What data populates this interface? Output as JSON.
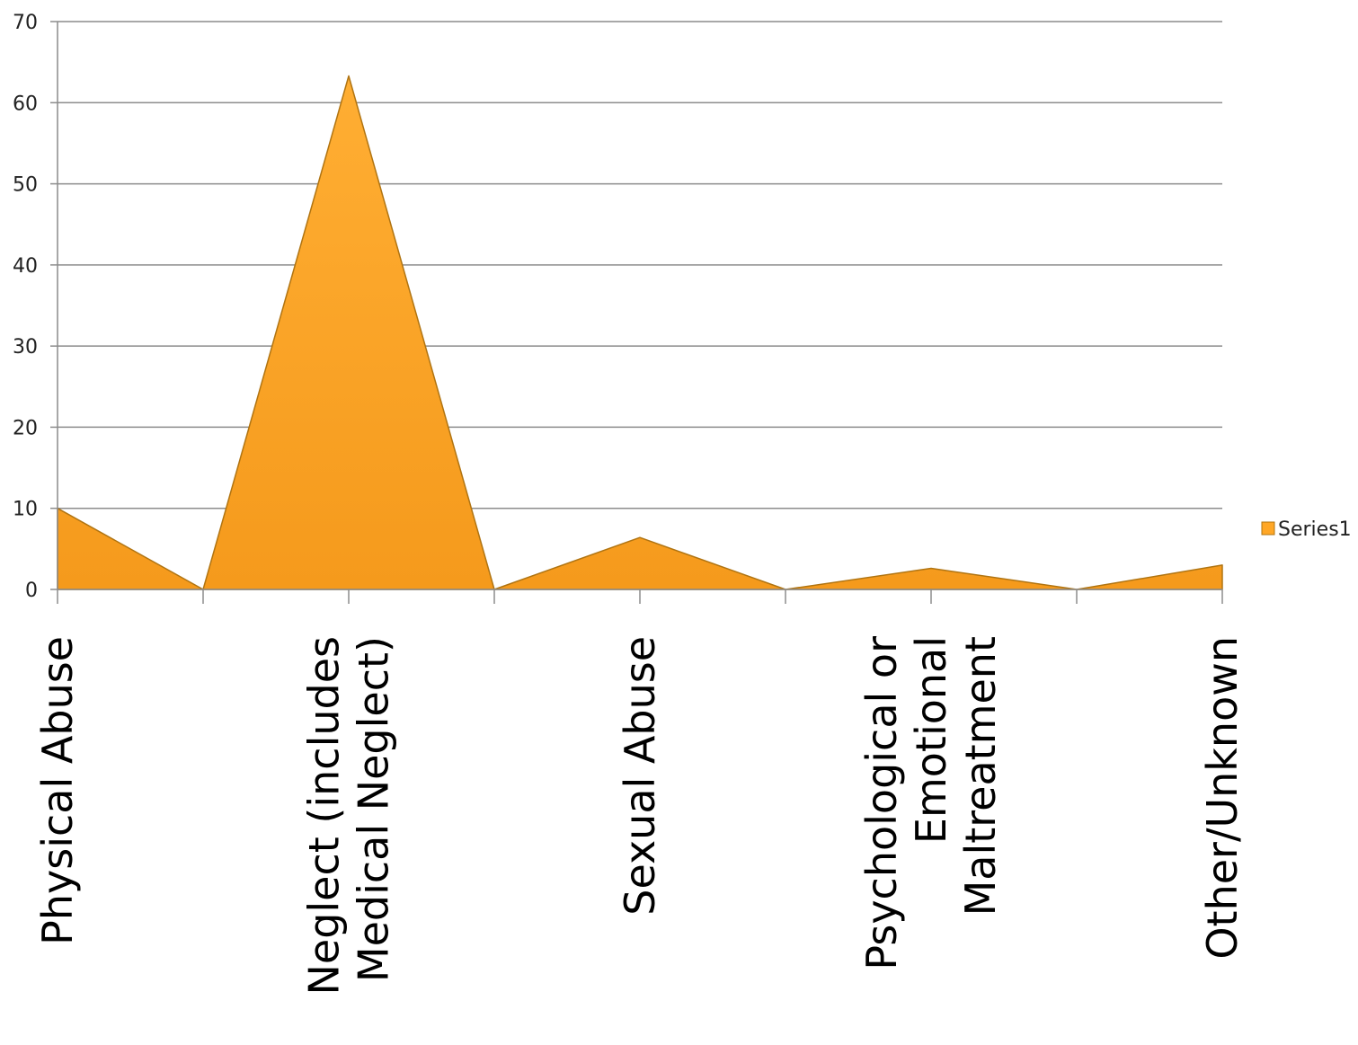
{
  "chart_data": {
    "type": "area",
    "x": [
      "Physical Abuse",
      "",
      "Neglect (includes Medical Neglect)",
      "",
      "Sexual Abuse",
      "",
      "Psychological or Emotional Maltreatment",
      "",
      "Other/Unknown"
    ],
    "series": [
      {
        "name": "Series1",
        "values": [
          10,
          0,
          63.3,
          0,
          6.4,
          0,
          2.6,
          0,
          3
        ]
      }
    ],
    "category_labels": [
      {
        "index": 0,
        "lines": [
          "Physical Abuse"
        ]
      },
      {
        "index": 2,
        "lines": [
          "Neglect (includes",
          "Medical Neglect)"
        ]
      },
      {
        "index": 4,
        "lines": [
          "Sexual Abuse"
        ]
      },
      {
        "index": 6,
        "lines": [
          "Psychological or",
          "Emotional",
          "Maltreatment"
        ]
      },
      {
        "index": 8,
        "lines": [
          "Other/Unknown"
        ]
      }
    ],
    "title": "",
    "xlabel": "",
    "ylabel": "",
    "ylim": [
      0,
      70
    ],
    "yticks": [
      "0",
      "10",
      "20",
      "30",
      "40",
      "50",
      "60",
      "70"
    ],
    "grid": true,
    "legend": "right",
    "colors": {
      "fill": "#FFA726",
      "stroke": "#B07412",
      "grid": "#8C8C8C"
    }
  }
}
